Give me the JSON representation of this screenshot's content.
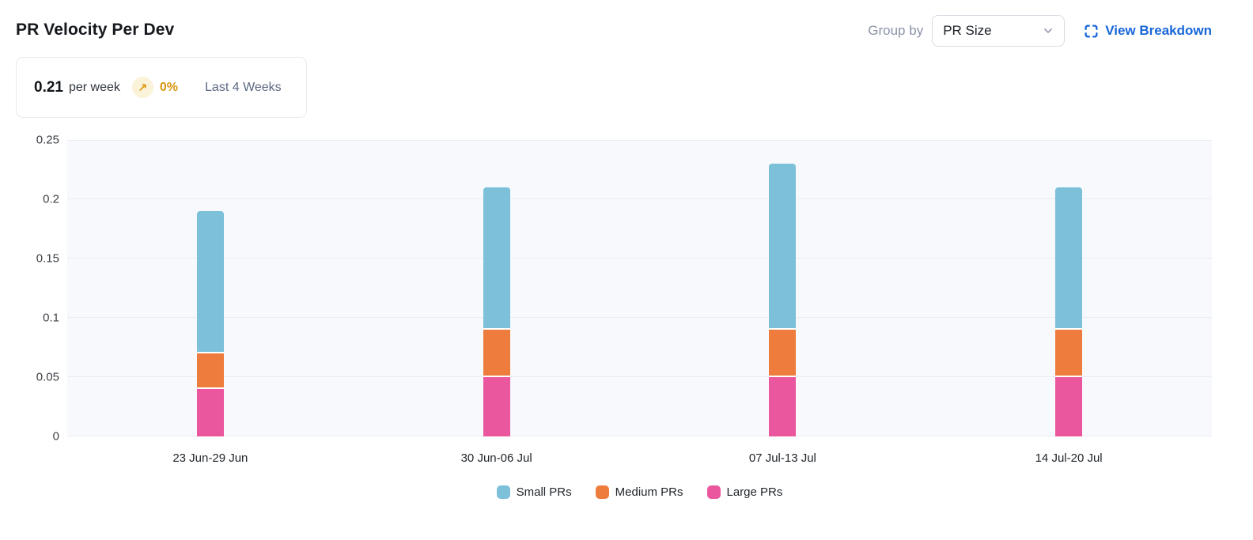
{
  "header": {
    "title": "PR Velocity Per Dev",
    "group_by_label": "Group by",
    "group_by_value": "PR Size",
    "view_breakdown_label": "View Breakdown"
  },
  "summary": {
    "value": "0.21",
    "unit": "per week",
    "trend_arrow": "↗",
    "trend_percent": "0%",
    "period": "Last 4 Weeks"
  },
  "colors": {
    "small_prs": "#7cc0da",
    "medium_prs": "#ee7c3c",
    "large_prs": "#ea579e",
    "link_blue": "#1766d9",
    "trend_amber": "#d9950f",
    "plot_background": "#f8f9fc",
    "gridline": "#e9ecf2"
  },
  "chart_data": {
    "type": "bar",
    "stacked": true,
    "title": "PR Velocity Per Dev",
    "xlabel": "",
    "ylabel": "",
    "grid": true,
    "legend_position": "bottom",
    "ylim": [
      0,
      0.25
    ],
    "categories": [
      "23 Jun-29 Jun",
      "30 Jun-06 Jul",
      "07 Jul-13 Jul",
      "14 Jul-20 Jul"
    ],
    "series": [
      {
        "name": "Small PRs",
        "color": "#7cc0da",
        "values": [
          0.12,
          0.12,
          0.14,
          0.12
        ]
      },
      {
        "name": "Medium PRs",
        "color": "#ee7c3c",
        "values": [
          0.03,
          0.04,
          0.04,
          0.04
        ]
      },
      {
        "name": "Large PRs",
        "color": "#ea579e",
        "values": [
          0.04,
          0.05,
          0.05,
          0.05
        ]
      }
    ],
    "totals": [
      0.19,
      0.21,
      0.23,
      0.21
    ],
    "y_ticks": [
      {
        "v": 0,
        "label": "0"
      },
      {
        "v": 0.05,
        "label": "0.05"
      },
      {
        "v": 0.1,
        "label": "0.1"
      },
      {
        "v": 0.15,
        "label": "0.15"
      },
      {
        "v": 0.2,
        "label": "0.2"
      },
      {
        "v": 0.25,
        "label": "0.25"
      }
    ]
  }
}
